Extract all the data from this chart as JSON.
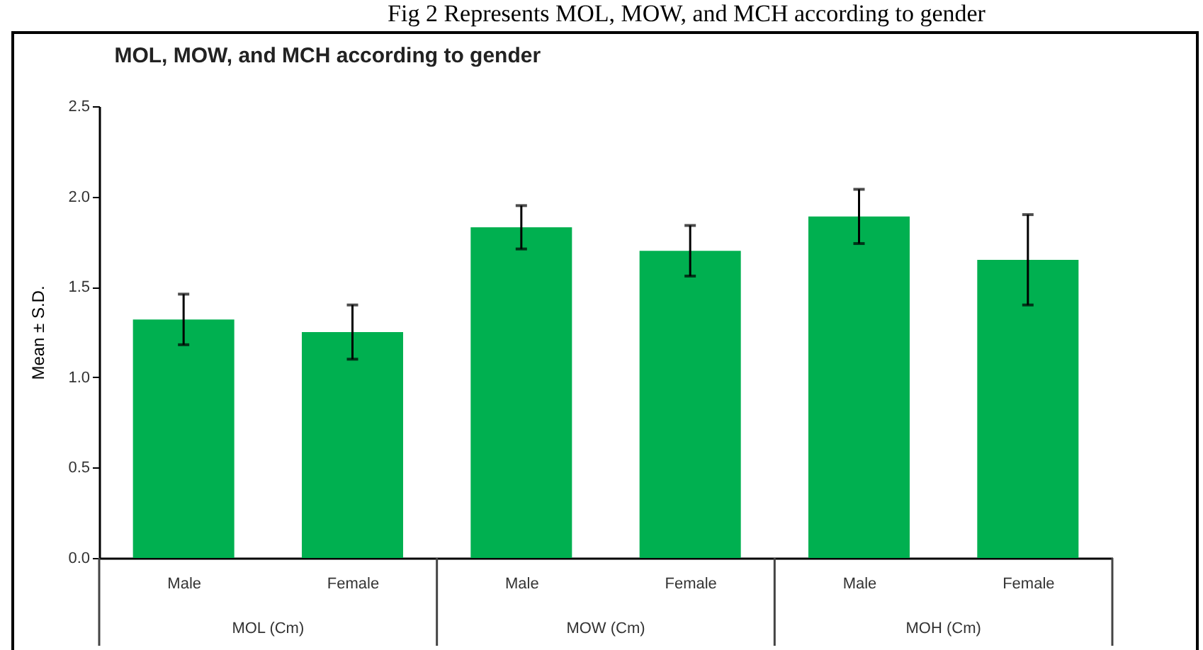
{
  "chart_data": {
    "type": "bar",
    "title": "MOL, MOW, and MCH according to gender",
    "ylabel": "Mean ± S.D.",
    "categories": [
      "Male",
      "Female",
      "Male",
      "Female",
      "Male",
      "Female"
    ],
    "values": [
      1.32,
      1.25,
      1.83,
      1.7,
      1.89,
      1.65
    ],
    "errors": [
      0.14,
      0.15,
      0.12,
      0.14,
      0.15,
      0.25
    ],
    "color": "#00b050",
    "ylim": [
      0,
      2.5
    ],
    "yticks": [
      {
        "value": 0,
        "label": "0.0"
      },
      0.5,
      {
        "value": 1,
        "label": "1.0"
      },
      1.5,
      {
        "value": 2,
        "label": "2.0"
      },
      2.5
    ],
    "annotations": [
      "Fig 2 Represents MOL, MOW, and MCH according to gender",
      "MOL (Cm)",
      "MOW (Cm)",
      "MOH (Cm)"
    ],
    "grid": false
  }
}
